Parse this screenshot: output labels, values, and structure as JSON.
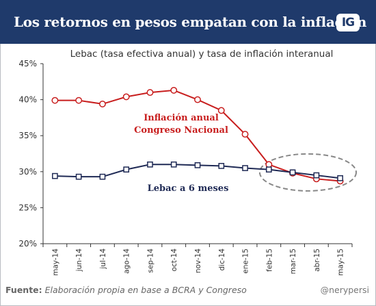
{
  "header": {
    "title": "Los retornos en pesos empatan con la inflación",
    "logo": "IG"
  },
  "footer": {
    "label": "Fuente:",
    "text": "Elaboración propia en base a BCRA y Congreso",
    "handle": "@nerypersi"
  },
  "colors": {
    "banner": "#1f3a6b",
    "inflation": "#c81e1e",
    "lebac": "#1f2a55",
    "highlight": "#888888"
  },
  "chart_data": {
    "type": "line",
    "title": "Lebac (tasa efectiva anual) y tasa de inflación interanual",
    "xlabel": "",
    "ylabel": "",
    "ylim": [
      20,
      45
    ],
    "yticks": [
      "45%",
      "40%",
      "35%",
      "30%",
      "25%",
      "20%"
    ],
    "grid": false,
    "legend": "inline labels",
    "categories": [
      "may-14",
      "jun-14",
      "jul-14",
      "ago-14",
      "sep-14",
      "oct-14",
      "nov-14",
      "dic-14",
      "ene-15",
      "feb-15",
      "mar-15",
      "abr-15",
      "may-15"
    ],
    "series": [
      {
        "name": "Inflación anual Congreso Nacional",
        "label_lines": [
          "Inflación anual",
          "Congreso Nacional"
        ],
        "marker": "circle",
        "values": [
          39.9,
          39.9,
          39.4,
          40.4,
          41.0,
          41.3,
          40.0,
          38.5,
          35.2,
          31.0,
          29.8,
          29.0,
          28.7
        ]
      },
      {
        "name": "Lebac a 6 meses",
        "label_lines": [
          "Lebac a 6 meses"
        ],
        "marker": "square",
        "values": [
          29.4,
          29.3,
          29.3,
          30.3,
          31.0,
          31.0,
          30.9,
          30.8,
          30.5,
          30.3,
          29.9,
          29.5,
          29.1
        ]
      }
    ]
  }
}
